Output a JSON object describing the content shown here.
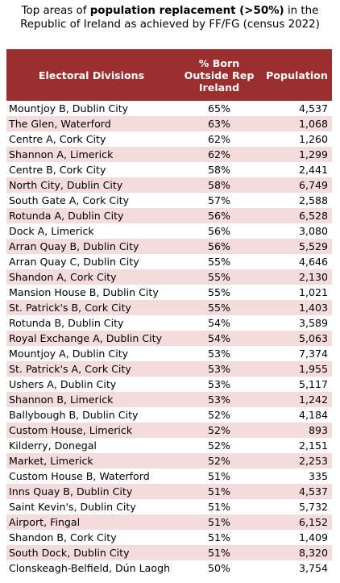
{
  "title": {
    "prefix": "Top areas of ",
    "bold": "population replacement (>50%)",
    "suffix_line1": " in the",
    "line2": "Republic of Ireland as achieved by FF/FG (census 2022)"
  },
  "table": {
    "headers": {
      "division": "Electoral Divisions",
      "pct_line1": "% Born",
      "pct_line2": "Outside Rep",
      "pct_line3": "Ireland",
      "population": "Population"
    },
    "rows": [
      {
        "division": "Mountjoy B, Dublin City",
        "pct": "65%",
        "population": "4,537"
      },
      {
        "division": "The Glen, Waterford",
        "pct": "63%",
        "population": "1,068"
      },
      {
        "division": "Centre A, Cork City",
        "pct": "62%",
        "population": "1,260"
      },
      {
        "division": "Shannon A, Limerick",
        "pct": "62%",
        "population": "1,299"
      },
      {
        "division": "Centre B, Cork City",
        "pct": "58%",
        "population": "2,441"
      },
      {
        "division": "North City, Dublin City",
        "pct": "58%",
        "population": "6,749"
      },
      {
        "division": "South Gate A, Cork City",
        "pct": "57%",
        "population": "2,588"
      },
      {
        "division": "Rotunda A, Dublin City",
        "pct": "56%",
        "population": "6,528"
      },
      {
        "division": "Dock A, Limerick",
        "pct": "56%",
        "population": "3,080"
      },
      {
        "division": "Arran Quay B, Dublin City",
        "pct": "56%",
        "population": "5,529"
      },
      {
        "division": "Arran Quay C, Dublin City",
        "pct": "55%",
        "population": "4,646"
      },
      {
        "division": "Shandon A, Cork City",
        "pct": "55%",
        "population": "2,130"
      },
      {
        "division": "Mansion House B, Dublin City",
        "pct": "55%",
        "population": "1,021"
      },
      {
        "division": "St. Patrick's B, Cork City",
        "pct": "55%",
        "population": "1,403"
      },
      {
        "division": "Rotunda B, Dublin City",
        "pct": "54%",
        "population": "3,589"
      },
      {
        "division": "Royal Exchange A, Dublin City",
        "pct": "54%",
        "population": "5,063"
      },
      {
        "division": "Mountjoy A, Dublin City",
        "pct": "53%",
        "population": "7,374"
      },
      {
        "division": "St. Patrick's A, Cork City",
        "pct": "53%",
        "population": "1,955"
      },
      {
        "division": "Ushers A, Dublin City",
        "pct": "53%",
        "population": "5,117"
      },
      {
        "division": "Shannon B, Limerick",
        "pct": "53%",
        "population": "1,242"
      },
      {
        "division": "Ballybough B, Dublin City",
        "pct": "52%",
        "population": "4,184"
      },
      {
        "division": "Custom House, Limerick",
        "pct": "52%",
        "population": "893"
      },
      {
        "division": "Kilderry, Donegal",
        "pct": "52%",
        "population": "2,151"
      },
      {
        "division": "Market, Limerick",
        "pct": "52%",
        "population": "2,253"
      },
      {
        "division": "Custom House B, Waterford",
        "pct": "51%",
        "population": "335"
      },
      {
        "division": "Inns Quay B, Dublin City",
        "pct": "51%",
        "population": "4,537"
      },
      {
        "division": "Saint Kevin's, Dublin City",
        "pct": "51%",
        "population": "5,732"
      },
      {
        "division": "Airport, Fingal",
        "pct": "51%",
        "population": "6,152"
      },
      {
        "division": "Shandon B, Cork City",
        "pct": "51%",
        "population": "1,409"
      },
      {
        "division": "South Dock, Dublin City",
        "pct": "51%",
        "population": "8,320"
      },
      {
        "division": "Clonskeagh-Belfield, Dún Laogh",
        "pct": "50%",
        "population": "3,754"
      }
    ]
  },
  "colors": {
    "header_bg": "#9b2f2f",
    "stripe": "#f5dcdc"
  }
}
